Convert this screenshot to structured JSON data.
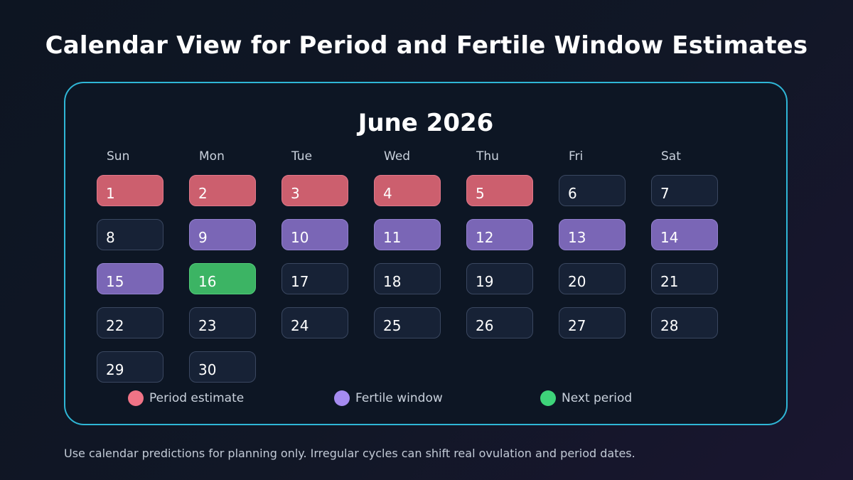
{
  "title": "Calendar View for Period and Fertile Window Estimates",
  "calendar": {
    "month_label": "June 2026",
    "weekdays": [
      "Sun",
      "Mon",
      "Tue",
      "Wed",
      "Thu",
      "Fri",
      "Sat"
    ],
    "days": [
      {
        "day": "1",
        "type": "period"
      },
      {
        "day": "2",
        "type": "period"
      },
      {
        "day": "3",
        "type": "period"
      },
      {
        "day": "4",
        "type": "period"
      },
      {
        "day": "5",
        "type": "period"
      },
      {
        "day": "6",
        "type": "normal"
      },
      {
        "day": "7",
        "type": "normal"
      },
      {
        "day": "8",
        "type": "normal"
      },
      {
        "day": "9",
        "type": "fertile"
      },
      {
        "day": "10",
        "type": "fertile"
      },
      {
        "day": "11",
        "type": "fertile"
      },
      {
        "day": "12",
        "type": "fertile"
      },
      {
        "day": "13",
        "type": "fertile"
      },
      {
        "day": "14",
        "type": "fertile"
      },
      {
        "day": "15",
        "type": "fertile"
      },
      {
        "day": "16",
        "type": "next"
      },
      {
        "day": "17",
        "type": "normal"
      },
      {
        "day": "18",
        "type": "normal"
      },
      {
        "day": "19",
        "type": "normal"
      },
      {
        "day": "20",
        "type": "normal"
      },
      {
        "day": "21",
        "type": "normal"
      },
      {
        "day": "22",
        "type": "normal"
      },
      {
        "day": "23",
        "type": "normal"
      },
      {
        "day": "24",
        "type": "normal"
      },
      {
        "day": "25",
        "type": "normal"
      },
      {
        "day": "26",
        "type": "normal"
      },
      {
        "day": "27",
        "type": "normal"
      },
      {
        "day": "28",
        "type": "normal"
      },
      {
        "day": "29",
        "type": "normal"
      },
      {
        "day": "30",
        "type": "normal"
      }
    ]
  },
  "legend": [
    {
      "label": "Period estimate",
      "color": "#f07386"
    },
    {
      "label": "Fertile window",
      "color": "#a58bf0"
    },
    {
      "label": "Next period",
      "color": "#3ed47a"
    }
  ],
  "footnote": "Use calendar predictions for planning only. Irregular cycles can shift real ovulation and period dates.",
  "colors": {
    "accent_border": "#2fb6d6",
    "period": "#cc5f6e",
    "fertile": "#7a66b6",
    "next_period": "#3cb464"
  }
}
